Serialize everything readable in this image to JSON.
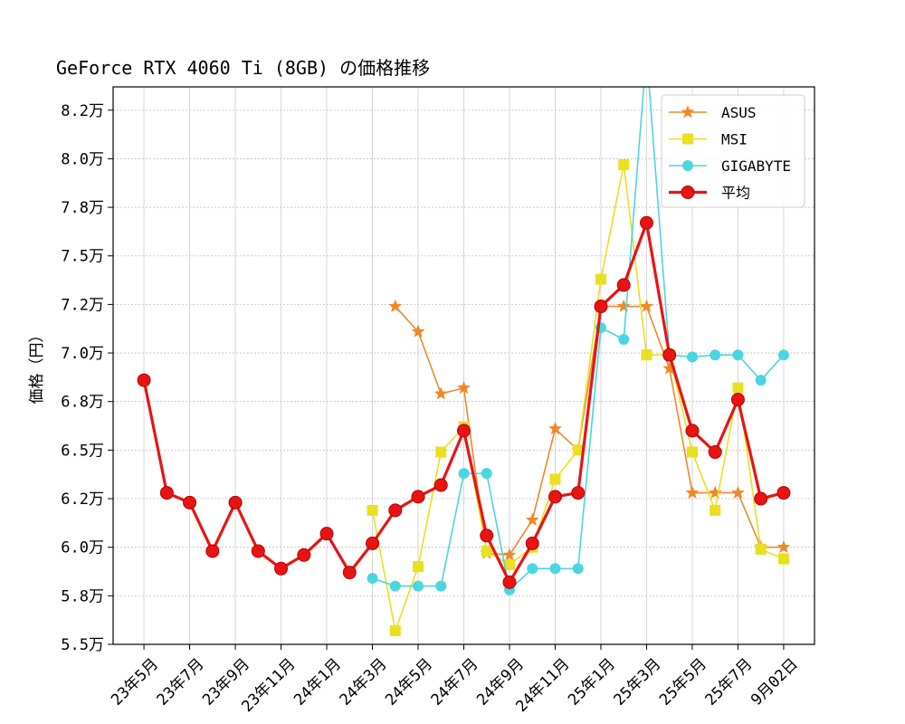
{
  "chart_data": {
    "type": "line",
    "title": "GeForce RTX 4060 Ti (8GB) の価格推移",
    "xlabel": "",
    "ylabel": "価格（円）",
    "ylim": [
      55000,
      83700
    ],
    "y_ticks": [
      55000,
      57500,
      60000,
      62500,
      65000,
      67500,
      70000,
      72500,
      75000,
      77500,
      80000,
      82500
    ],
    "y_tick_labels": [
      "5.5万",
      "5.8万",
      "6.0万",
      "6.2万",
      "6.5万",
      "6.8万",
      "7.0万",
      "7.2万",
      "7.5万",
      "7.8万",
      "8.0万",
      "8.2万"
    ],
    "x_tick_labels": [
      "23年5月",
      "23年7月",
      "23年9月",
      "23年11月",
      "24年1月",
      "24年3月",
      "24年5月",
      "24年7月",
      "24年9月",
      "24年11月",
      "25年1月",
      "25年3月",
      "25年5月",
      "25年7月",
      "9月02日"
    ],
    "x_tick_positions": [
      0,
      2,
      4,
      6,
      8,
      10,
      12,
      14,
      16,
      18,
      20,
      22,
      24,
      26,
      28
    ],
    "xlim": [
      -1.35,
      29.35
    ],
    "grid": true,
    "legend": "top-right",
    "series": [
      {
        "name": "ASUS",
        "color": "#f0882a",
        "marker": "star",
        "width": 1.6,
        "x": [
          11,
          12,
          13,
          14,
          15,
          16,
          17,
          18,
          19,
          20,
          21,
          22,
          23,
          24,
          25,
          26,
          27,
          28
        ],
        "values": [
          72400,
          71100,
          67900,
          68200,
          59700,
          59600,
          61400,
          66100,
          65000,
          72400,
          72400,
          72400,
          69200,
          62800,
          62800,
          62800,
          60000,
          60000
        ]
      },
      {
        "name": "MSI",
        "color": "#e8e020",
        "marker": "square",
        "width": 1.6,
        "x": [
          10,
          11,
          12,
          13,
          14,
          15,
          16,
          17,
          18,
          19,
          20,
          21,
          22,
          23,
          24,
          25,
          26,
          27,
          28
        ],
        "values": [
          61900,
          55700,
          59000,
          64900,
          66200,
          59800,
          59100,
          60000,
          63500,
          65000,
          73800,
          79700,
          69900,
          69900,
          64900,
          61900,
          68200,
          59900,
          59400
        ]
      },
      {
        "name": "GIGABYTE",
        "color": "#4ad6e0",
        "marker": "circle",
        "width": 1.6,
        "x": [
          10,
          11,
          12,
          13,
          14,
          15,
          16,
          17,
          18,
          19,
          20,
          21,
          22,
          23,
          24,
          25,
          26,
          27,
          28
        ],
        "values": [
          58400,
          58000,
          58000,
          58000,
          63800,
          63800,
          57800,
          58900,
          58900,
          58900,
          71300,
          70700,
          85500,
          69900,
          69800,
          69900,
          69900,
          68600,
          69900
        ]
      },
      {
        "name": "平均",
        "color": "#e81414",
        "marker": "circle",
        "width": 3.2,
        "x": [
          0,
          1,
          2,
          3,
          4,
          5,
          6,
          7,
          8,
          9,
          10,
          11,
          12,
          13,
          14,
          15,
          16,
          17,
          18,
          19,
          20,
          21,
          22,
          23,
          24,
          25,
          26,
          27,
          28
        ],
        "values": [
          68600,
          62800,
          62300,
          59800,
          62300,
          59800,
          58900,
          59600,
          60700,
          58700,
          60200,
          61900,
          62600,
          63200,
          66000,
          60600,
          58200,
          60200,
          62600,
          62800,
          72400,
          73500,
          76700,
          69900,
          66000,
          64900,
          67600,
          62500,
          62800
        ]
      }
    ]
  }
}
